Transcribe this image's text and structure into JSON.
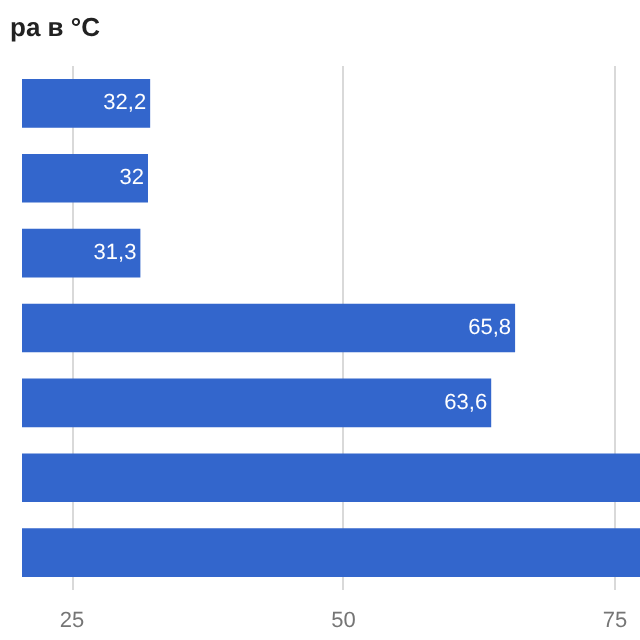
{
  "chart_data": {
    "type": "bar",
    "orientation": "horizontal",
    "title": "ра в °С",
    "categories": [
      null,
      null,
      null,
      null,
      null,
      null,
      null
    ],
    "values": [
      32.2,
      32,
      31.3,
      65.8,
      63.6,
      77.3,
      77.3
    ],
    "value_labels": [
      "32,2",
      "32",
      "31,3",
      "65,8",
      "63,6",
      null,
      null
    ],
    "color": "#3366cc",
    "xlim": [
      20.4,
      77.3
    ],
    "xticks": [
      25,
      50,
      75
    ],
    "grid": "x"
  }
}
